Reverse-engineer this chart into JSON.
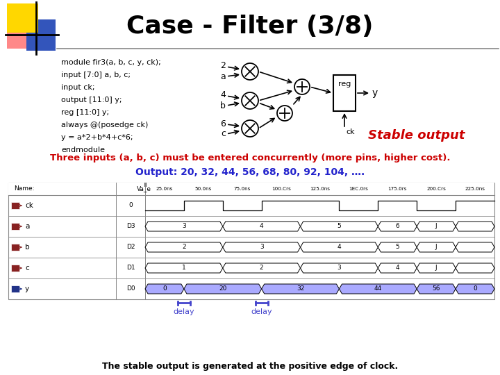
{
  "title": "Case - Filter (3/8)",
  "bg_color": "#ffffff",
  "code_lines": [
    "module fir3(a, b, c, y, ck);",
    "input [7:0] a, b, c;",
    "input ck;",
    "output [11:0] y;",
    "reg [11:0] y;",
    "always @(posedge ck)",
    "y = a*2+b*4+c*6;",
    "endmodule"
  ],
  "red_text": "Three inputs (a, b, c) must be entered concurrently (more pins, higher cost).",
  "blue_text": "Output: 20, 32, 44, 56, 68, 80, 92, 104, ….",
  "stable_output_text": "Stable output",
  "bottom_text": "The stable output is generated at the positive edge of clock.",
  "delay_label": "delay"
}
